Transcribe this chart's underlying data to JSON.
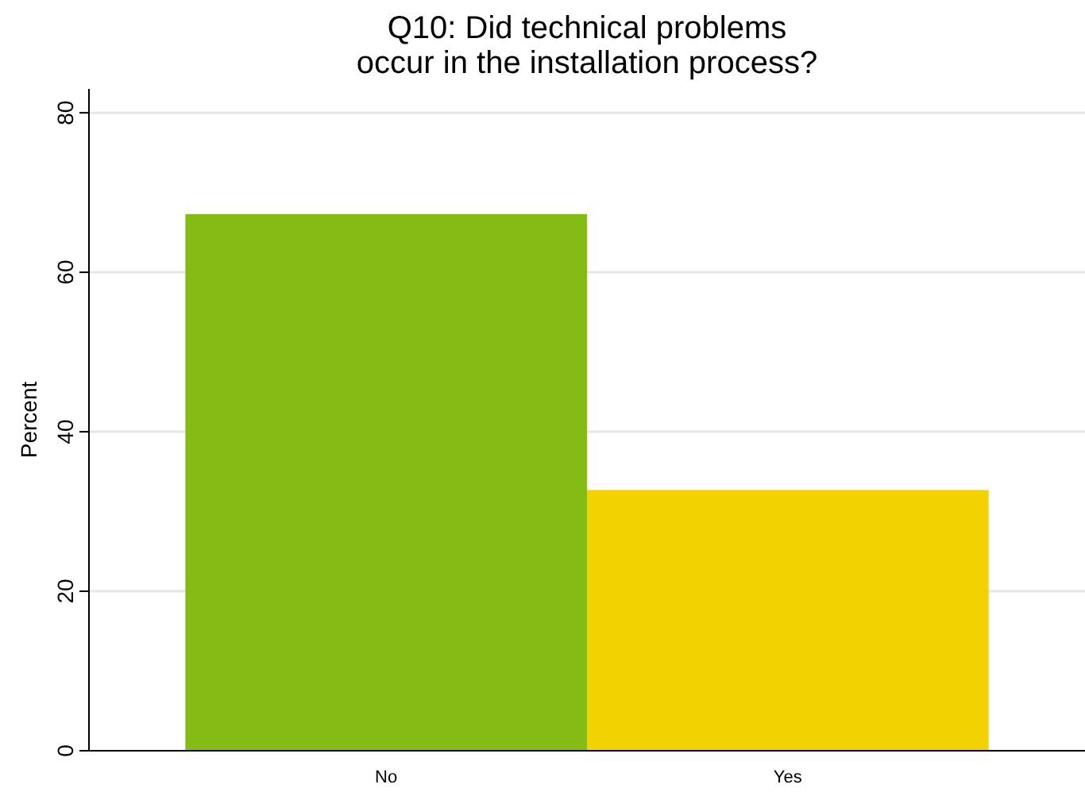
{
  "chart_data": {
    "type": "bar",
    "title": "Q10: Did technical problems\noccur in the installation process?",
    "ylabel": "Percent",
    "categories": [
      "No",
      "Yes"
    ],
    "values": [
      67.3,
      32.7
    ],
    "colors": [
      "#84bb14",
      "#f2d200"
    ],
    "ylim": [
      0,
      83
    ],
    "yticks": [
      0,
      20,
      40,
      60,
      80
    ],
    "grid": "y"
  }
}
